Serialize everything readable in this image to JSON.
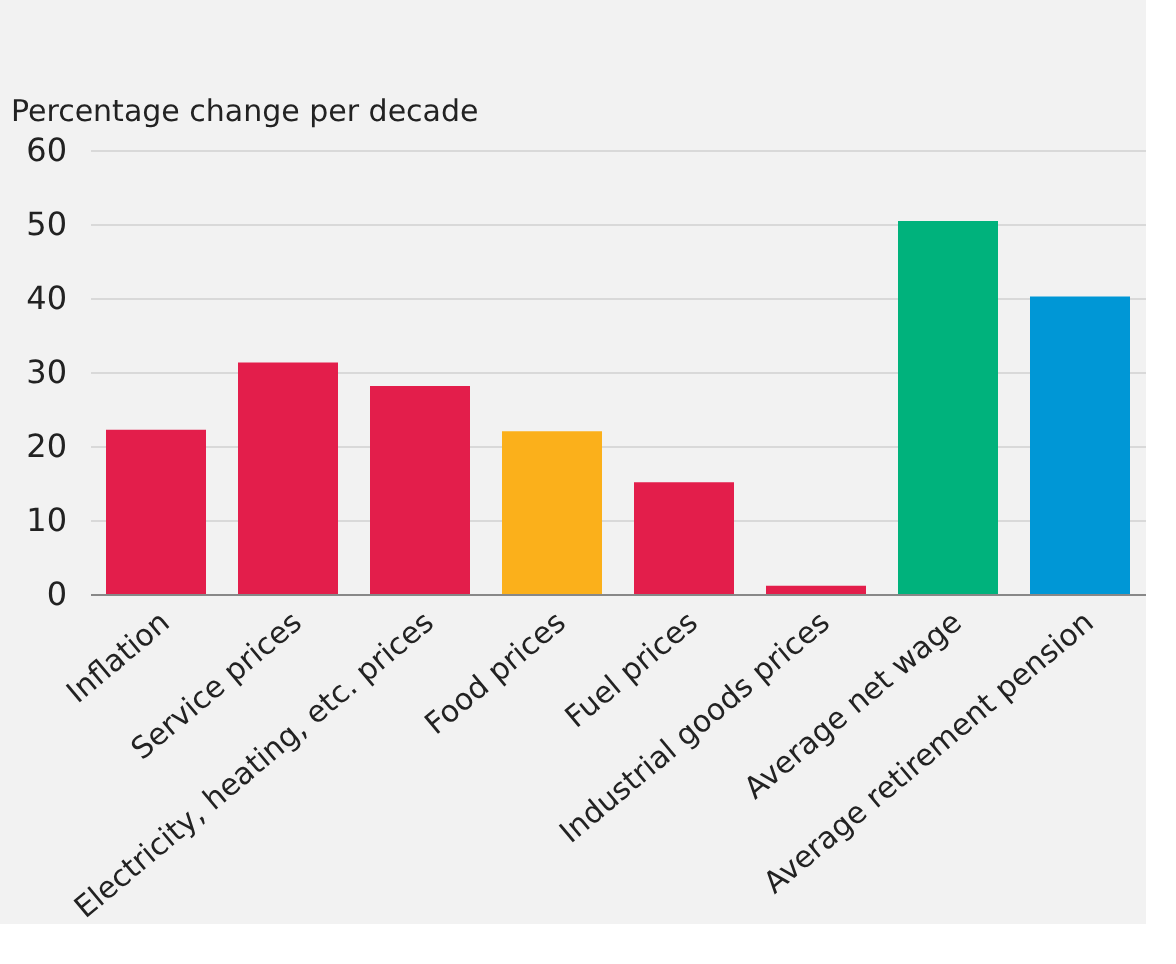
{
  "chart_data": {
    "type": "bar",
    "ylabel": "Percentage change per decade",
    "categories": [
      "Inflation",
      "Service prices",
      "Electricity, heating, etc. prices",
      "Food prices",
      "Fuel prices",
      "Industrial goods prices",
      "Average net wage",
      "Average retirement pension"
    ],
    "values": [
      22.2,
      31.3,
      28.1,
      22,
      15.1,
      1.1,
      50.4,
      40.2
    ],
    "colors": [
      "#e31e4b",
      "#e31e4b",
      "#e31e4b",
      "#fbb01b",
      "#e31e4b",
      "#e31e4b",
      "#00b27c",
      "#0097d6"
    ],
    "ylim": [
      0,
      60
    ],
    "yticks": [
      0,
      10,
      20,
      30,
      40,
      50,
      60
    ],
    "grid": "y"
  }
}
